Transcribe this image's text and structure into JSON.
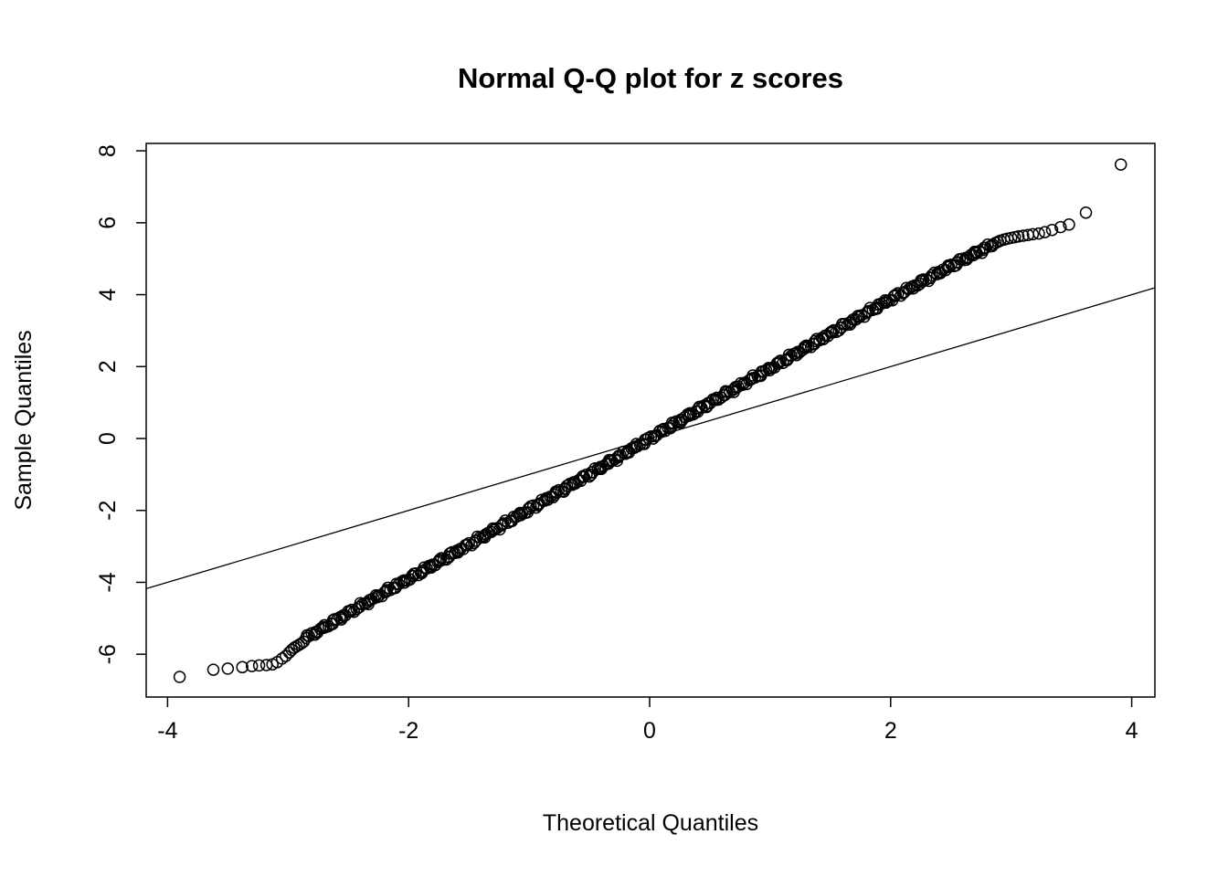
{
  "figure": {
    "background": "#ffffff",
    "foreground": "#000000"
  },
  "chart_data": {
    "type": "scatter",
    "subtype": "normal-qq-plot",
    "title": "Normal Q-Q plot for z scores",
    "xlabel": "Theoretical Quantiles",
    "ylabel": "Sample Quantiles",
    "x_ticks": [
      -4,
      -2,
      0,
      2,
      4
    ],
    "y_ticks": [
      -6,
      -4,
      -2,
      0,
      2,
      4,
      6,
      8
    ],
    "xlim": [
      -4.18,
      4.19
    ],
    "ylim": [
      -7.2,
      8.2
    ],
    "grid": false,
    "legend": null,
    "marker": {
      "shape": "open-circle",
      "radius_px": 6,
      "color": "#000000"
    },
    "reference_line": {
      "slope": 1,
      "intercept": 0
    },
    "dense_band": {
      "x_min": -2.85,
      "x_max": 2.85,
      "n_points": 400,
      "y_jitter": 0.07,
      "anchors": [
        [
          -2.85,
          -5.55
        ],
        [
          -2.5,
          -4.85
        ],
        [
          -2.0,
          -3.9
        ],
        [
          -1.5,
          -2.95
        ],
        [
          -1.0,
          -1.97
        ],
        [
          -0.5,
          -0.99
        ],
        [
          0.0,
          0.0
        ],
        [
          0.5,
          0.99
        ],
        [
          1.0,
          1.95
        ],
        [
          1.5,
          2.92
        ],
        [
          2.0,
          3.88
        ],
        [
          2.5,
          4.8
        ],
        [
          2.85,
          5.4
        ]
      ]
    },
    "tail_points": [
      [
        -3.9,
        -6.63
      ],
      [
        -3.62,
        -6.43
      ],
      [
        -3.5,
        -6.4
      ],
      [
        -3.38,
        -6.36
      ],
      [
        -3.3,
        -6.33
      ],
      [
        -3.24,
        -6.31
      ],
      [
        -3.18,
        -6.3
      ],
      [
        -3.13,
        -6.28
      ],
      [
        -3.09,
        -6.22
      ],
      [
        -3.05,
        -6.12
      ],
      [
        -3.02,
        -6.05
      ],
      [
        -2.99,
        -5.95
      ],
      [
        -2.97,
        -5.88
      ],
      [
        -2.95,
        -5.82
      ],
      [
        -2.93,
        -5.78
      ],
      [
        -2.91,
        -5.74
      ],
      [
        -2.89,
        -5.7
      ],
      [
        -2.87,
        -5.65
      ],
      [
        2.87,
        5.44
      ],
      [
        2.89,
        5.47
      ],
      [
        2.91,
        5.5
      ],
      [
        2.94,
        5.53
      ],
      [
        2.97,
        5.56
      ],
      [
        3.0,
        5.58
      ],
      [
        3.03,
        5.6
      ],
      [
        3.06,
        5.62
      ],
      [
        3.1,
        5.64
      ],
      [
        3.14,
        5.66
      ],
      [
        3.18,
        5.68
      ],
      [
        3.23,
        5.7
      ],
      [
        3.28,
        5.74
      ],
      [
        3.34,
        5.8
      ],
      [
        3.41,
        5.88
      ],
      [
        3.48,
        5.95
      ],
      [
        3.62,
        6.28
      ],
      [
        3.91,
        7.62
      ]
    ]
  }
}
